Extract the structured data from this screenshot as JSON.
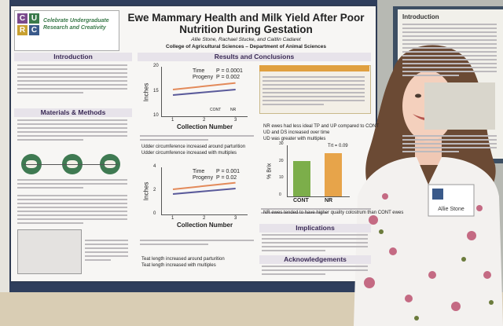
{
  "poster": {
    "logo": {
      "letters": [
        "C",
        "U",
        "R",
        "C"
      ],
      "text": "Celebrate Undergraduate Research and Creativity"
    },
    "title": "Ewe Mammary Health and Milk Yield After Poor Nutrition During Gestation",
    "authors": "Allie Stone, Rachael Stucke, and Caitlin Cadaret",
    "affiliation": "College of Agricultural Sciences – Department of Animal Sciences",
    "sections": {
      "introduction": "Introduction",
      "methods": "Materials & Methods",
      "results": "Results and Conclusions",
      "implications": "Implications",
      "acknowledgements": "Acknowledgements"
    },
    "chart1": {
      "stats": [
        "Time",
        "P = 0.0001",
        "Progeny",
        "P = 0.002"
      ],
      "ylabel": "Inches",
      "xlabel": "Collection Number",
      "yticks": [
        "10",
        "15",
        "20"
      ],
      "xticks": [
        "1",
        "2",
        "3"
      ],
      "legend": [
        "CONT",
        "NR"
      ]
    },
    "chart2": {
      "stats": [
        "Time",
        "P = 0.001",
        "Progeny",
        "P = 0.02"
      ],
      "ylabel": "Inches",
      "xlabel": "Collection Number",
      "yticks": [
        "0",
        "2",
        "4"
      ],
      "xticks": [
        "1",
        "2",
        "3"
      ]
    },
    "chart3": {
      "ylabel": "% Brix",
      "stat": "Trt = 0.09",
      "yticks": [
        "0",
        "10",
        "20",
        "30"
      ],
      "categories": [
        "CONT",
        "NR"
      ]
    },
    "bullets1": [
      "Udder circumference increased around parturition",
      "Udder circumference increased with multiples"
    ],
    "bullets2": [
      "Teat length increased around parturition",
      "Teat length increased with multiples"
    ],
    "bullets3": [
      "NR ewes had less ideal TP and UP compared to CONT",
      "UD and DS increased over time",
      "UD was greater with multiples"
    ],
    "bullets4": [
      "NR ewes tended to have higher quality colostrum than CONT ewes"
    ]
  },
  "side_poster": {
    "heading": "Introduction"
  },
  "name_tag": {
    "name": "Allie Stone"
  }
}
